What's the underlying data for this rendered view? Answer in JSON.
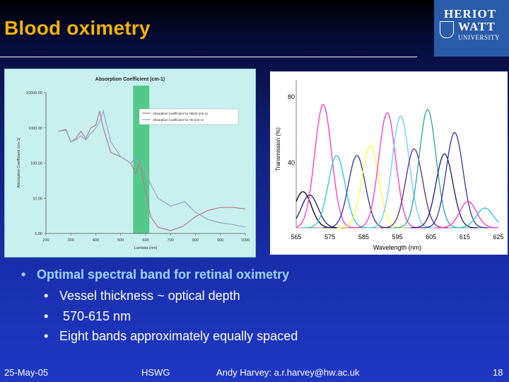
{
  "slide": {
    "title": "Blood oximetry",
    "logo": {
      "line1": "HERIOT",
      "line2": "WATT",
      "line3": "UNIVERSITY"
    },
    "bullets": {
      "main": "Optimal spectral band for retinal oximetry",
      "subs": [
        "Vessel thickness ~ optical depth",
        " 570-615 nm",
        "Eight bands approximately equally spaced"
      ]
    },
    "footer": {
      "date": "25-May-05",
      "group": "HSWG",
      "contact": "Andy Harvey: a.r.harvey@hw.ac.uk",
      "page": "18"
    }
  },
  "chart_data": [
    {
      "type": "line",
      "title": "Absorption Coefficient (cm-1)",
      "xlabel": "Lambda (nm)",
      "ylabel": "Absorption Coefficient (cm-1)",
      "y_scale": "log",
      "xlim": [
        200,
        1000
      ],
      "ylim": [
        1,
        10000
      ],
      "x_ticks": [
        "200",
        "300",
        "400",
        "500",
        "600",
        "700",
        "800",
        "900",
        "1000"
      ],
      "y_ticks": [
        "10000.00",
        "1000.00",
        "100.00",
        "10.00",
        "1.00"
      ],
      "highlight_band": [
        550,
        615
      ],
      "legend": [
        "Absorption Coefficient for HbO2 (cm-1)",
        "Absorption Coefficient for Hb (cm-1)"
      ],
      "series": [
        {
          "name": "Absorption Coefficient for HbO2 (cm-1)",
          "color": "#b77b8e",
          "x": [
            250,
            280,
            300,
            320,
            340,
            360,
            380,
            400,
            415,
            430,
            460,
            500,
            540,
            560,
            576,
            600,
            620,
            650,
            700,
            750,
            800,
            850,
            900,
            950,
            1000
          ],
          "y": [
            800,
            900,
            400,
            500,
            800,
            500,
            1000,
            1200,
            3000,
            1000,
            200,
            150,
            100,
            50,
            110,
            15,
            3,
            1.5,
            1.2,
            1.6,
            3,
            4.5,
            5.5,
            5.5,
            5
          ]
        },
        {
          "name": "Absorption Coefficient for Hb (cm-1)",
          "color": "#9aa2c8",
          "x": [
            250,
            280,
            300,
            320,
            340,
            360,
            380,
            400,
            415,
            430,
            460,
            500,
            540,
            555,
            580,
            600,
            620,
            650,
            700,
            757,
            800,
            850,
            900,
            950,
            1000
          ],
          "y": [
            800,
            850,
            400,
            450,
            600,
            450,
            700,
            1000,
            1500,
            3000,
            400,
            150,
            100,
            130,
            90,
            60,
            25,
            10,
            6,
            8,
            4,
            2.5,
            2,
            1.8,
            1.5
          ]
        }
      ]
    },
    {
      "type": "line",
      "xlabel": "Wavelength (nm)",
      "ylabel": "Transmission (%)",
      "xlim": [
        565,
        625
      ],
      "ylim": [
        0,
        90
      ],
      "x_ticks": [
        "565",
        "575",
        "585",
        "595",
        "605",
        "615",
        "625"
      ],
      "y_ticks": [
        "80",
        "40"
      ],
      "series": [
        {
          "color": "#000000",
          "center": 567,
          "peak": 22,
          "width": 2.5
        },
        {
          "color": "#1a1a6e",
          "center": 569,
          "peak": 20,
          "width": 2.5
        },
        {
          "color": "#ff33cc",
          "center": 573,
          "peak": 75,
          "width": 2.5
        },
        {
          "color": "#26c6da",
          "center": 577,
          "peak": 44,
          "width": 2.5
        },
        {
          "color": "#333399",
          "center": 583,
          "peak": 44,
          "width": 2.5
        },
        {
          "color": "#ffff33",
          "center": 587,
          "peak": 50,
          "width": 2.5
        },
        {
          "color": "#ff33cc",
          "center": 592,
          "peak": 70,
          "width": 2.5
        },
        {
          "color": "#66ccff",
          "center": 596,
          "peak": 68,
          "width": 2.5
        },
        {
          "color": "#5a2d82",
          "center": 600,
          "peak": 48,
          "width": 2.5
        },
        {
          "color": "#26a69a",
          "center": 604,
          "peak": 72,
          "width": 2.5
        },
        {
          "color": "#1a1a6e",
          "center": 609,
          "peak": 45,
          "width": 2.5
        },
        {
          "color": "#333399",
          "center": 612,
          "peak": 58,
          "width": 2.5
        },
        {
          "color": "#ff33cc",
          "center": 616,
          "peak": 16,
          "width": 2.5
        },
        {
          "color": "#26c6da",
          "center": 621,
          "peak": 12,
          "width": 2.5
        }
      ]
    }
  ]
}
